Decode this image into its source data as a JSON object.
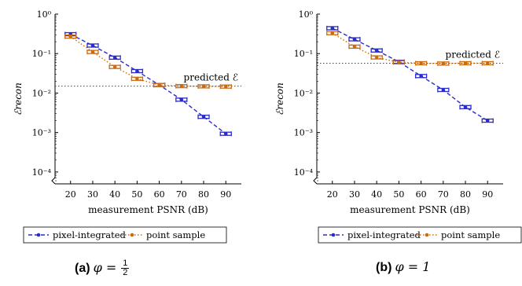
{
  "chart_data": [
    {
      "type": "line",
      "panel_label": "(a)",
      "caption_symbol": "φ =",
      "caption_numerator": "1",
      "caption_denominator": "2",
      "xlabel": "measurement PSNR (dB)",
      "ylabel": "ℰrecon",
      "y_scale": "log",
      "ylim": [
        5e-05,
        1
      ],
      "y_ticks": [
        "10⁰",
        "10⁻¹",
        "10⁻²",
        "10⁻³",
        "10⁻⁴"
      ],
      "x": [
        20,
        30,
        40,
        50,
        60,
        70,
        80,
        90
      ],
      "xlim": [
        13,
        97
      ],
      "annotation": "predicted ℰ",
      "reference_line": 0.015,
      "legend_position": "bottom",
      "series": [
        {
          "name": "pixel-integrated",
          "color": "#2b2bc9",
          "dash": "dashed",
          "values": [
            0.31,
            0.16,
            0.079,
            0.036,
            0.016,
            0.0068,
            0.0025,
            0.00093
          ]
        },
        {
          "name": "point sample",
          "color": "#cc6a0e",
          "dash": "dotted",
          "values": [
            0.27,
            0.11,
            0.046,
            0.023,
            0.016,
            0.015,
            0.0148,
            0.0146
          ]
        }
      ]
    },
    {
      "type": "line",
      "panel_label": "(b)",
      "caption_symbol": "φ = 1",
      "xlabel": "measurement PSNR (dB)",
      "ylabel": "ℰrecon",
      "y_scale": "log",
      "ylim": [
        5e-05,
        1
      ],
      "y_ticks": [
        "10⁰",
        "10⁻¹",
        "10⁻²",
        "10⁻³",
        "10⁻⁴"
      ],
      "x": [
        20,
        30,
        40,
        50,
        60,
        70,
        80,
        90
      ],
      "xlim": [
        13,
        97
      ],
      "annotation": "predicted ℰ",
      "reference_line": 0.057,
      "legend_position": "bottom",
      "series": [
        {
          "name": "pixel-integrated",
          "color": "#2b2bc9",
          "dash": "dashed",
          "values": [
            0.44,
            0.23,
            0.12,
            0.062,
            0.027,
            0.012,
            0.0044,
            0.002
          ]
        },
        {
          "name": "point sample",
          "color": "#cc6a0e",
          "dash": "dotted",
          "values": [
            0.33,
            0.15,
            0.08,
            0.06,
            0.057,
            0.056,
            0.057,
            0.057
          ]
        }
      ]
    }
  ]
}
